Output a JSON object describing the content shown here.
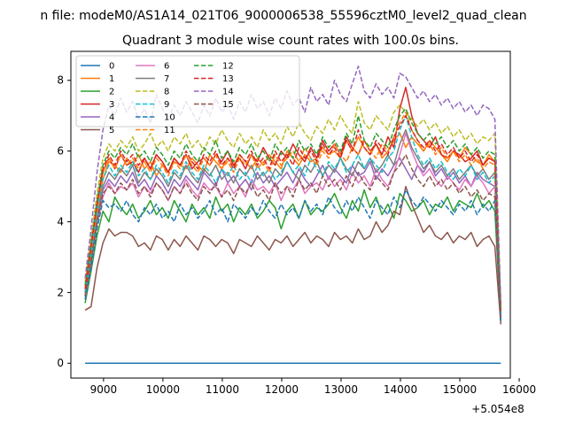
{
  "chart_data": {
    "type": "line",
    "suptitle": "n file: modeM0/AS1A14_021T06_9000006538_55596cztM0_level2_quad_clean",
    "title": "Quadrant 3 module wise count rates with 100.0s bins.",
    "xlabel": "",
    "ylabel": "",
    "x_offset_label": "+5.054e8",
    "xlim": [
      8450,
      15850
    ],
    "ylim": [
      -0.42,
      8.82
    ],
    "x_ticks": [
      9000,
      10000,
      11000,
      12000,
      13000,
      14000,
      15000,
      16000
    ],
    "y_ticks": [
      0,
      2,
      4,
      6,
      8
    ],
    "x_tick_labels": [
      "9000",
      "10000",
      "11000",
      "12000",
      "13000",
      "14000",
      "15000",
      "16000"
    ],
    "y_tick_labels": [
      "0",
      "2",
      "4",
      "6",
      "8"
    ],
    "x_start": 8690,
    "x_step": 100,
    "legend_position": "top-left",
    "legend_columns": 3,
    "series": [
      {
        "name": "0",
        "color": "#1f77b4",
        "dash": "solid",
        "values": [
          0,
          0,
          0,
          0,
          0,
          0,
          0,
          0,
          0,
          0,
          0,
          0,
          0,
          0,
          0,
          0,
          0,
          0,
          0,
          0,
          0,
          0,
          0,
          0,
          0,
          0,
          0,
          0,
          0,
          0,
          0,
          0,
          0,
          0,
          0,
          0,
          0,
          0,
          0,
          0,
          0,
          0,
          0,
          0,
          0,
          0,
          0,
          0,
          0,
          0,
          0,
          0,
          0,
          0,
          0,
          0,
          0,
          0,
          0,
          0,
          0,
          0,
          0,
          0,
          0,
          0,
          0,
          0,
          0,
          0,
          0
        ]
      },
      {
        "name": "1",
        "color": "#ff7f0e",
        "dash": "solid",
        "values": [
          2.1,
          3.0,
          4.2,
          5.2,
          5.7,
          5.6,
          5.4,
          5.8,
          5.6,
          5.9,
          5.5,
          5.7,
          5.3,
          5.6,
          5.4,
          5.7,
          5.6,
          5.5,
          5.8,
          5.6,
          5.4,
          5.9,
          5.7,
          5.5,
          5.8,
          5.6,
          5.9,
          5.7,
          5.5,
          5.8,
          5.6,
          5.9,
          5.7,
          5.5,
          6.0,
          5.8,
          5.6,
          5.9,
          5.7,
          5.8,
          6.1,
          5.9,
          6.0,
          5.8,
          6.3,
          6.0,
          6.4,
          6.1,
          5.9,
          6.2,
          5.8,
          6.0,
          6.3,
          6.5,
          6.1,
          6.4,
          6.2,
          6.0,
          6.3,
          6.1,
          5.9,
          5.7,
          6.0,
          5.8,
          6.1,
          5.9,
          5.7,
          5.6,
          5.9,
          5.7,
          1.5
        ]
      },
      {
        "name": "2",
        "color": "#2ca02c",
        "dash": "solid",
        "values": [
          1.7,
          2.6,
          3.6,
          4.3,
          4.0,
          4.7,
          4.4,
          4.2,
          4.5,
          4.1,
          4.3,
          4.6,
          4.2,
          4.4,
          4.1,
          4.6,
          4.3,
          4.0,
          4.5,
          4.2,
          4.4,
          4.1,
          4.7,
          4.3,
          4.5,
          4.0,
          4.4,
          4.2,
          4.5,
          4.1,
          4.3,
          4.6,
          4.4,
          3.8,
          4.3,
          4.5,
          4.1,
          4.6,
          4.2,
          4.4,
          4.3,
          4.5,
          4.8,
          4.4,
          4.1,
          4.6,
          4.3,
          4.9,
          4.4,
          4.7,
          4.2,
          4.5,
          4.1,
          4.8,
          4.6,
          4.3,
          4.4,
          4.6,
          4.2,
          4.5,
          4.4,
          4.7,
          4.3,
          4.6,
          4.5,
          4.4,
          4.8,
          4.4,
          4.6,
          4.3,
          1.2
        ]
      },
      {
        "name": "3",
        "color": "#d62728",
        "dash": "solid",
        "values": [
          2.0,
          3.2,
          4.5,
          5.4,
          5.8,
          5.5,
          5.9,
          5.6,
          5.7,
          5.4,
          5.8,
          5.5,
          5.9,
          5.7,
          5.4,
          5.8,
          5.6,
          5.9,
          5.5,
          5.7,
          5.8,
          5.6,
          5.9,
          5.7,
          6.0,
          5.6,
          5.8,
          5.5,
          5.9,
          5.7,
          6.1,
          5.8,
          5.6,
          6.0,
          5.8,
          6.2,
          5.9,
          5.7,
          6.1,
          5.8,
          6.3,
          6.0,
          6.2,
          5.9,
          6.4,
          6.1,
          5.9,
          6.3,
          6.0,
          6.2,
          5.9,
          6.4,
          6.1,
          7.2,
          7.8,
          7.0,
          6.5,
          6.3,
          6.1,
          6.4,
          5.9,
          5.8,
          6.0,
          5.9,
          5.7,
          5.8,
          6.0,
          5.6,
          5.8,
          5.7,
          1.4
        ]
      },
      {
        "name": "4",
        "color": "#9467bd",
        "dash": "solid",
        "values": [
          1.9,
          3.0,
          4.0,
          4.9,
          5.2,
          5.0,
          5.3,
          5.1,
          5.4,
          5.0,
          5.2,
          4.9,
          5.3,
          5.1,
          4.8,
          5.2,
          5.0,
          5.3,
          5.1,
          4.9,
          5.4,
          5.2,
          5.0,
          5.5,
          5.1,
          5.3,
          5.0,
          5.2,
          4.9,
          5.4,
          5.1,
          5.3,
          5.0,
          5.2,
          5.4,
          5.1,
          5.5,
          5.2,
          5.0,
          5.3,
          5.6,
          5.2,
          5.5,
          5.3,
          5.1,
          5.6,
          5.3,
          5.4,
          5.7,
          5.2,
          5.5,
          5.3,
          5.6,
          5.8,
          5.5,
          5.2,
          5.6,
          5.4,
          5.7,
          5.3,
          5.5,
          5.2,
          5.4,
          5.1,
          5.3,
          5.0,
          5.4,
          5.2,
          5.1,
          5.0,
          1.3
        ]
      },
      {
        "name": "5",
        "color": "#8c564b",
        "dash": "solid",
        "values": [
          1.5,
          1.6,
          2.7,
          3.4,
          3.8,
          3.6,
          3.7,
          3.7,
          3.6,
          3.3,
          3.4,
          3.2,
          3.6,
          3.5,
          3.2,
          3.5,
          3.3,
          3.6,
          3.4,
          3.2,
          3.6,
          3.5,
          3.3,
          3.5,
          3.4,
          3.1,
          3.5,
          3.4,
          3.3,
          3.6,
          3.4,
          3.2,
          3.5,
          3.4,
          3.6,
          3.3,
          3.5,
          3.7,
          3.4,
          3.6,
          3.5,
          3.3,
          3.7,
          3.5,
          3.6,
          3.4,
          3.8,
          3.5,
          3.6,
          4.0,
          3.7,
          3.9,
          4.3,
          4.2,
          5.0,
          4.5,
          4.1,
          3.7,
          3.9,
          3.6,
          3.5,
          3.7,
          3.4,
          3.6,
          3.5,
          3.7,
          3.3,
          3.5,
          3.6,
          3.3,
          1.1
        ]
      },
      {
        "name": "6",
        "color": "#e377c2",
        "dash": "solid",
        "values": [
          1.8,
          2.8,
          3.9,
          4.7,
          5.1,
          4.8,
          5.0,
          4.9,
          5.1,
          4.7,
          5.0,
          4.8,
          5.1,
          4.9,
          4.6,
          5.0,
          4.8,
          5.2,
          4.9,
          4.7,
          5.1,
          4.9,
          5.0,
          4.7,
          5.1,
          4.8,
          5.0,
          4.7,
          5.2,
          4.9,
          5.0,
          4.8,
          5.1,
          4.6,
          5.0,
          4.9,
          5.2,
          4.8,
          5.0,
          5.1,
          4.9,
          5.3,
          5.0,
          5.2,
          4.9,
          5.4,
          5.1,
          5.3,
          5.0,
          5.5,
          5.2,
          5.0,
          5.4,
          5.9,
          6.5,
          6.0,
          5.6,
          5.3,
          5.5,
          5.2,
          5.0,
          5.3,
          5.1,
          4.9,
          5.2,
          5.0,
          5.3,
          5.1,
          4.8,
          5.0,
          1.4
        ]
      },
      {
        "name": "7",
        "color": "#7f7f7f",
        "dash": "solid",
        "values": [
          1.9,
          2.9,
          4.1,
          5.0,
          5.4,
          5.2,
          5.5,
          5.3,
          5.6,
          5.1,
          5.4,
          5.2,
          5.5,
          5.3,
          5.0,
          5.4,
          5.2,
          5.6,
          5.3,
          5.1,
          5.5,
          5.3,
          5.6,
          5.2,
          5.4,
          5.1,
          5.5,
          5.3,
          5.6,
          5.2,
          5.4,
          5.1,
          5.5,
          5.3,
          5.7,
          5.4,
          5.2,
          5.6,
          5.4,
          5.7,
          5.3,
          5.6,
          5.4,
          5.8,
          5.5,
          5.3,
          5.7,
          5.5,
          5.8,
          5.4,
          5.6,
          5.9,
          5.6,
          6.2,
          6.6,
          6.1,
          5.8,
          5.5,
          5.7,
          5.4,
          5.6,
          5.3,
          5.5,
          5.2,
          5.4,
          5.6,
          5.3,
          5.5,
          5.2,
          5.4,
          1.4
        ]
      },
      {
        "name": "8",
        "color": "#bcbd22",
        "dash": "dashed",
        "values": [
          2.3,
          3.5,
          4.8,
          5.8,
          6.2,
          6.0,
          6.3,
          6.1,
          6.4,
          6.0,
          6.2,
          6.5,
          6.1,
          6.3,
          6.0,
          6.4,
          6.2,
          6.5,
          6.1,
          6.3,
          6.0,
          6.4,
          6.2,
          6.6,
          6.3,
          6.1,
          6.5,
          6.2,
          6.4,
          6.1,
          6.6,
          6.3,
          6.5,
          6.2,
          6.7,
          6.4,
          6.8,
          6.5,
          6.3,
          6.7,
          6.5,
          6.9,
          6.6,
          7.0,
          6.7,
          6.5,
          7.4,
          6.8,
          6.6,
          7.0,
          6.8,
          6.6,
          7.1,
          7.3,
          7.1,
          6.9,
          6.7,
          6.9,
          6.6,
          6.8,
          6.5,
          6.7,
          6.4,
          6.6,
          6.3,
          6.5,
          6.2,
          6.4,
          6.3,
          6.5,
          1.6
        ]
      },
      {
        "name": "9",
        "color": "#17becf",
        "dash": "dashed",
        "values": [
          2.0,
          3.1,
          4.3,
          5.2,
          5.6,
          5.3,
          5.6,
          5.4,
          5.7,
          5.3,
          5.5,
          5.2,
          5.6,
          5.4,
          5.1,
          5.5,
          5.3,
          5.7,
          5.4,
          5.2,
          5.6,
          5.4,
          5.1,
          5.5,
          5.3,
          5.6,
          5.2,
          5.4,
          5.1,
          5.6,
          5.3,
          5.5,
          5.2,
          5.4,
          5.7,
          5.4,
          5.6,
          5.3,
          5.8,
          5.5,
          5.3,
          5.7,
          5.5,
          5.8,
          5.4,
          5.6,
          5.9,
          5.5,
          5.8,
          5.6,
          5.4,
          5.8,
          6.0,
          6.6,
          7.0,
          6.4,
          5.9,
          5.6,
          5.8,
          5.5,
          5.7,
          5.4,
          5.2,
          5.5,
          5.3,
          5.6,
          5.2,
          5.4,
          5.1,
          5.3,
          1.4
        ]
      },
      {
        "name": "10",
        "color": "#1f77b4",
        "dash": "dashed",
        "values": [
          1.8,
          2.7,
          3.8,
          4.6,
          4.4,
          4.5,
          4.3,
          4.6,
          4.2,
          4.0,
          4.4,
          4.2,
          4.5,
          4.1,
          4.3,
          4.0,
          4.5,
          4.2,
          4.4,
          4.1,
          4.3,
          4.6,
          4.2,
          4.4,
          4.0,
          4.5,
          4.3,
          4.1,
          4.4,
          4.2,
          4.6,
          4.3,
          4.1,
          4.5,
          4.2,
          4.4,
          4.1,
          4.6,
          4.3,
          4.5,
          4.2,
          4.7,
          4.4,
          4.2,
          4.6,
          4.3,
          4.7,
          4.4,
          4.1,
          4.6,
          4.4,
          4.2,
          4.7,
          4.4,
          4.9,
          4.6,
          4.4,
          4.7,
          4.5,
          4.3,
          4.6,
          4.4,
          4.2,
          4.5,
          4.3,
          4.6,
          4.2,
          4.5,
          4.3,
          4.6,
          1.2
        ]
      },
      {
        "name": "11",
        "color": "#ff7f0e",
        "dash": "dashed",
        "values": [
          2.1,
          3.2,
          4.4,
          5.4,
          5.8,
          5.5,
          5.9,
          5.6,
          5.8,
          5.5,
          5.7,
          5.4,
          5.8,
          5.6,
          5.3,
          5.7,
          5.5,
          5.9,
          5.6,
          5.4,
          5.8,
          5.6,
          5.9,
          5.5,
          5.7,
          5.4,
          5.8,
          5.6,
          5.9,
          5.5,
          5.7,
          5.4,
          5.9,
          5.6,
          5.8,
          6.0,
          5.7,
          6.1,
          5.8,
          5.6,
          6.0,
          5.8,
          6.2,
          5.9,
          5.7,
          6.1,
          5.9,
          6.3,
          6.0,
          5.8,
          6.2,
          6.0,
          6.4,
          6.8,
          7.1,
          6.6,
          6.3,
          6.0,
          6.2,
          5.9,
          6.1,
          5.8,
          6.0,
          5.7,
          5.9,
          5.6,
          5.8,
          5.5,
          5.7,
          5.6,
          1.5
        ]
      },
      {
        "name": "12",
        "color": "#2ca02c",
        "dash": "dashed",
        "values": [
          2.2,
          3.4,
          4.6,
          5.6,
          6.0,
          5.8,
          6.1,
          5.9,
          6.2,
          5.8,
          6.0,
          5.7,
          6.1,
          5.9,
          5.6,
          6.0,
          5.8,
          6.2,
          5.9,
          5.7,
          6.1,
          5.9,
          6.3,
          5.8,
          6.0,
          5.7,
          6.1,
          5.9,
          6.2,
          5.8,
          6.0,
          5.7,
          6.2,
          5.9,
          6.1,
          5.8,
          6.3,
          6.0,
          6.2,
          5.9,
          6.4,
          6.1,
          6.3,
          6.0,
          6.5,
          6.2,
          7.0,
          6.3,
          6.1,
          6.5,
          6.3,
          6.1,
          6.6,
          7.0,
          7.2,
          6.8,
          6.5,
          6.3,
          6.5,
          6.2,
          6.4,
          6.1,
          6.3,
          6.0,
          6.2,
          5.9,
          6.1,
          5.8,
          6.0,
          5.9,
          1.5
        ]
      },
      {
        "name": "13",
        "color": "#d62728",
        "dash": "dashed",
        "values": [
          2.1,
          3.3,
          4.5,
          5.5,
          5.9,
          5.6,
          6.0,
          5.7,
          5.9,
          5.6,
          5.8,
          5.5,
          5.9,
          5.7,
          5.4,
          5.8,
          5.6,
          6.0,
          5.7,
          5.5,
          5.9,
          5.7,
          6.0,
          5.6,
          5.8,
          5.5,
          5.9,
          5.7,
          6.0,
          5.6,
          5.8,
          5.5,
          6.0,
          5.7,
          5.9,
          5.6,
          6.1,
          5.8,
          6.0,
          5.7,
          6.2,
          5.9,
          6.1,
          5.8,
          6.3,
          6.0,
          6.6,
          6.1,
          5.9,
          6.3,
          6.1,
          5.9,
          6.4,
          6.7,
          7.0,
          6.6,
          6.3,
          6.1,
          6.3,
          6.0,
          6.2,
          5.9,
          6.1,
          5.8,
          6.0,
          5.7,
          5.9,
          5.6,
          5.8,
          5.7,
          1.5
        ]
      },
      {
        "name": "14",
        "color": "#9467bd",
        "dash": "dashed",
        "values": [
          2.4,
          3.8,
          5.4,
          6.6,
          7.3,
          7.0,
          7.5,
          7.1,
          7.4,
          6.9,
          7.2,
          6.8,
          7.6,
          7.2,
          6.9,
          7.3,
          7.0,
          7.4,
          7.1,
          6.8,
          7.3,
          7.0,
          7.5,
          7.1,
          7.3,
          6.9,
          7.4,
          7.1,
          7.6,
          7.2,
          7.4,
          7.0,
          7.5,
          7.2,
          7.7,
          7.3,
          7.5,
          7.1,
          7.8,
          7.4,
          7.6,
          7.3,
          8.0,
          7.6,
          7.4,
          7.9,
          8.4,
          7.7,
          7.5,
          7.9,
          7.6,
          7.8,
          7.5,
          8.2,
          8.1,
          7.8,
          7.5,
          7.7,
          7.4,
          7.6,
          7.3,
          7.5,
          7.2,
          7.4,
          7.1,
          7.3,
          7.0,
          7.3,
          7.2,
          6.9,
          1.7
        ]
      },
      {
        "name": "15",
        "color": "#8c564b",
        "dash": "dashed",
        "values": [
          1.9,
          2.9,
          4.0,
          4.8,
          5.0,
          4.8,
          5.1,
          4.9,
          5.2,
          4.8,
          5.0,
          4.7,
          5.1,
          4.9,
          4.6,
          5.0,
          4.8,
          5.1,
          4.8,
          4.6,
          5.0,
          4.8,
          5.1,
          4.7,
          4.9,
          4.6,
          5.0,
          4.8,
          5.1,
          4.7,
          4.9,
          4.6,
          5.1,
          4.8,
          5.0,
          4.7,
          5.2,
          4.9,
          5.1,
          4.8,
          5.3,
          5.0,
          5.2,
          4.9,
          5.3,
          5.0,
          5.4,
          5.1,
          4.9,
          5.3,
          5.1,
          4.9,
          5.4,
          5.6,
          5.9,
          5.5,
          5.2,
          5.0,
          5.3,
          5.0,
          5.2,
          4.9,
          5.1,
          4.8,
          5.0,
          4.7,
          4.9,
          4.6,
          4.8,
          4.7,
          1.3
        ]
      }
    ]
  }
}
